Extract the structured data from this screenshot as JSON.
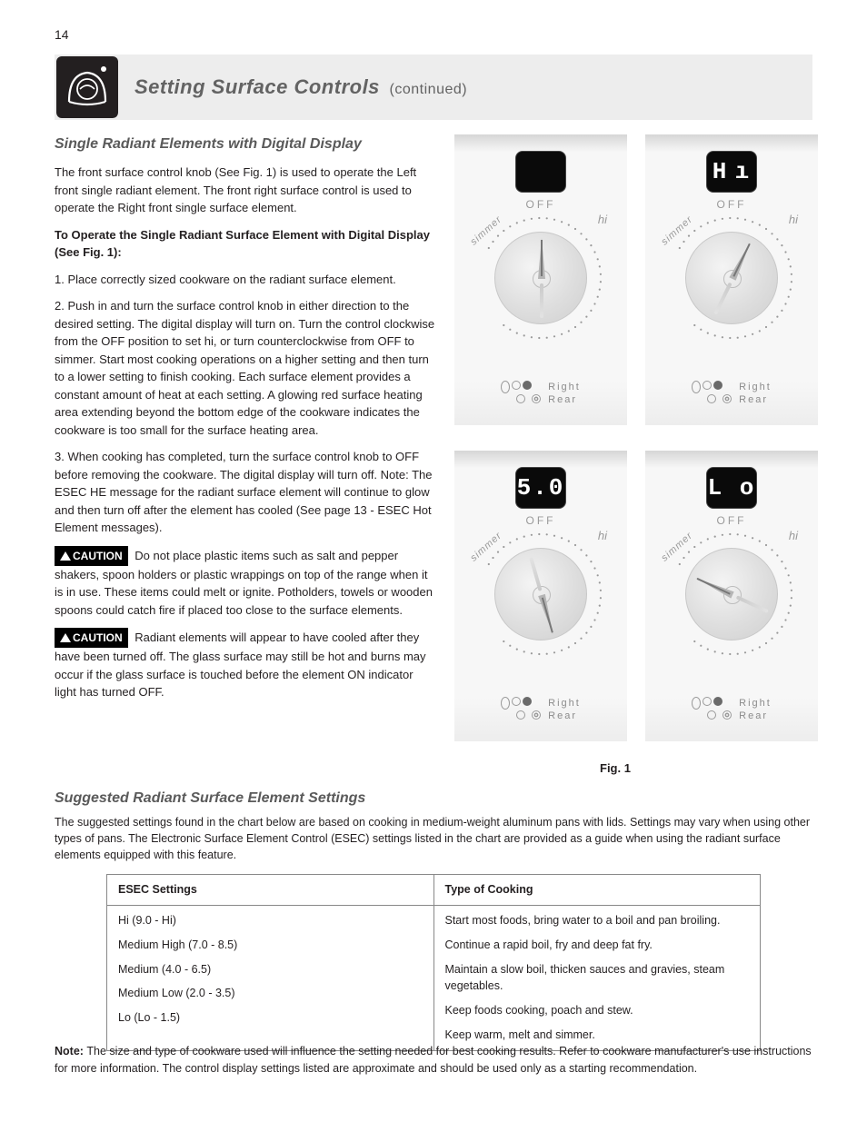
{
  "page_number": "14",
  "header": {
    "title": "Setting Surface Controls",
    "subtitle": "(continued)"
  },
  "left": {
    "section_title": "Single Radiant Elements with Digital Display",
    "p1": "The front surface control knob (See Fig. 1) is used to operate the Left front single radiant element. The front right surface control is used to operate the Right front single surface element.",
    "p2": "To Operate the Single Radiant Surface Element with Digital Display (See Fig. 1):",
    "step1": "1. Place correctly sized cookware on the radiant surface element.",
    "step2": "2. Push in and turn the surface control knob in either direction to the desired setting. The digital display will turn on. Turn the control clockwise from the OFF position to set hi, or turn counterclockwise from OFF to simmer. Start most cooking operations on a higher setting and then turn to a lower setting to finish cooking. Each surface element provides a constant amount of heat at each setting. A glowing red surface heating area extending beyond the bottom edge of the cookware indicates the cookware is too small for the surface heating area.",
    "step3": "3. When cooking has completed, turn the surface control knob to OFF before removing the cookware. The digital display will turn off. Note: The ESEC HE message for the radiant surface element will continue to glow and then turn off after the element has cooled (See page 13 - ESEC Hot Element messages).",
    "caution1_label": "CAUTION",
    "caution1_text": "Do not place plastic items such as salt and pepper shakers, spoon holders or plastic wrappings on top of the range when it is in use. These items could melt or ignite. Potholders, towels or wooden spoons could catch fire if placed too close to the surface elements.",
    "caution2_label": "CAUTION",
    "caution2_text": "Radiant elements will appear to have cooled after they have been turned off. The glass surface may still be hot and burns may occur if the glass surface is touched before the element ON indicator light has turned OFF."
  },
  "knobs": [
    {
      "display": "",
      "rotation": 0
    },
    {
      "display": "H ı",
      "rotation": 26
    },
    {
      "display": "5.0",
      "rotation": 164
    },
    {
      "display": "L o",
      "rotation": -65
    }
  ],
  "knob_labels": {
    "off": "OFF",
    "hi": "hi",
    "simmer": "simmer",
    "pos_line1": "Right",
    "pos_line2": "Rear"
  },
  "fig_caption": "Fig. 1",
  "rec": {
    "title": "Suggested Radiant Surface Element Settings",
    "intro": "The suggested settings found in the chart below are based on cooking in medium-weight aluminum pans with lids. Settings may vary when using other types of pans. The Electronic Surface Element Control (ESEC) settings listed in the chart are provided as a guide when using the radiant surface elements equipped with this feature.",
    "col1": "ESEC Settings",
    "col2": "Type of Cooking",
    "row_hi_label": "Hi (9.0 - Hi)",
    "row_hi_text": "Start most foods, bring water to a boil and pan broiling.",
    "row_mh_label": "Medium High (7.0 - 8.5)",
    "row_mh_text": "Continue a rapid boil, fry and deep fat fry.",
    "row_m_label": "Medium (4.0 - 6.5)",
    "row_m_text": "Maintain a slow boil, thicken sauces and gravies, steam vegetables.",
    "row_ml_label": "Medium Low (2.0 - 3.5)",
    "row_ml_text": "Keep foods cooking, poach and stew.",
    "row_lo_label": "Lo (Lo - 1.5)",
    "row_lo_text": "Keep warm, melt and simmer."
  },
  "note": "The size and type of cookware used will influence the setting needed for best cooking results. Refer to cookware manufacturer's use instructions for more information. The control display settings listed are approximate and should be used only as a starting recommendation.",
  "colors": {
    "page_bg": "#ffffff",
    "banner_bg": "#ededed",
    "icon_bg": "#231f20",
    "title_gray": "#636363",
    "body_text": "#231f20",
    "knob_panel_bg": "#f5f5f5",
    "display_bg": "#0a0a0a",
    "display_text": "#ffffff",
    "label_gray": "#9a9a9a"
  }
}
